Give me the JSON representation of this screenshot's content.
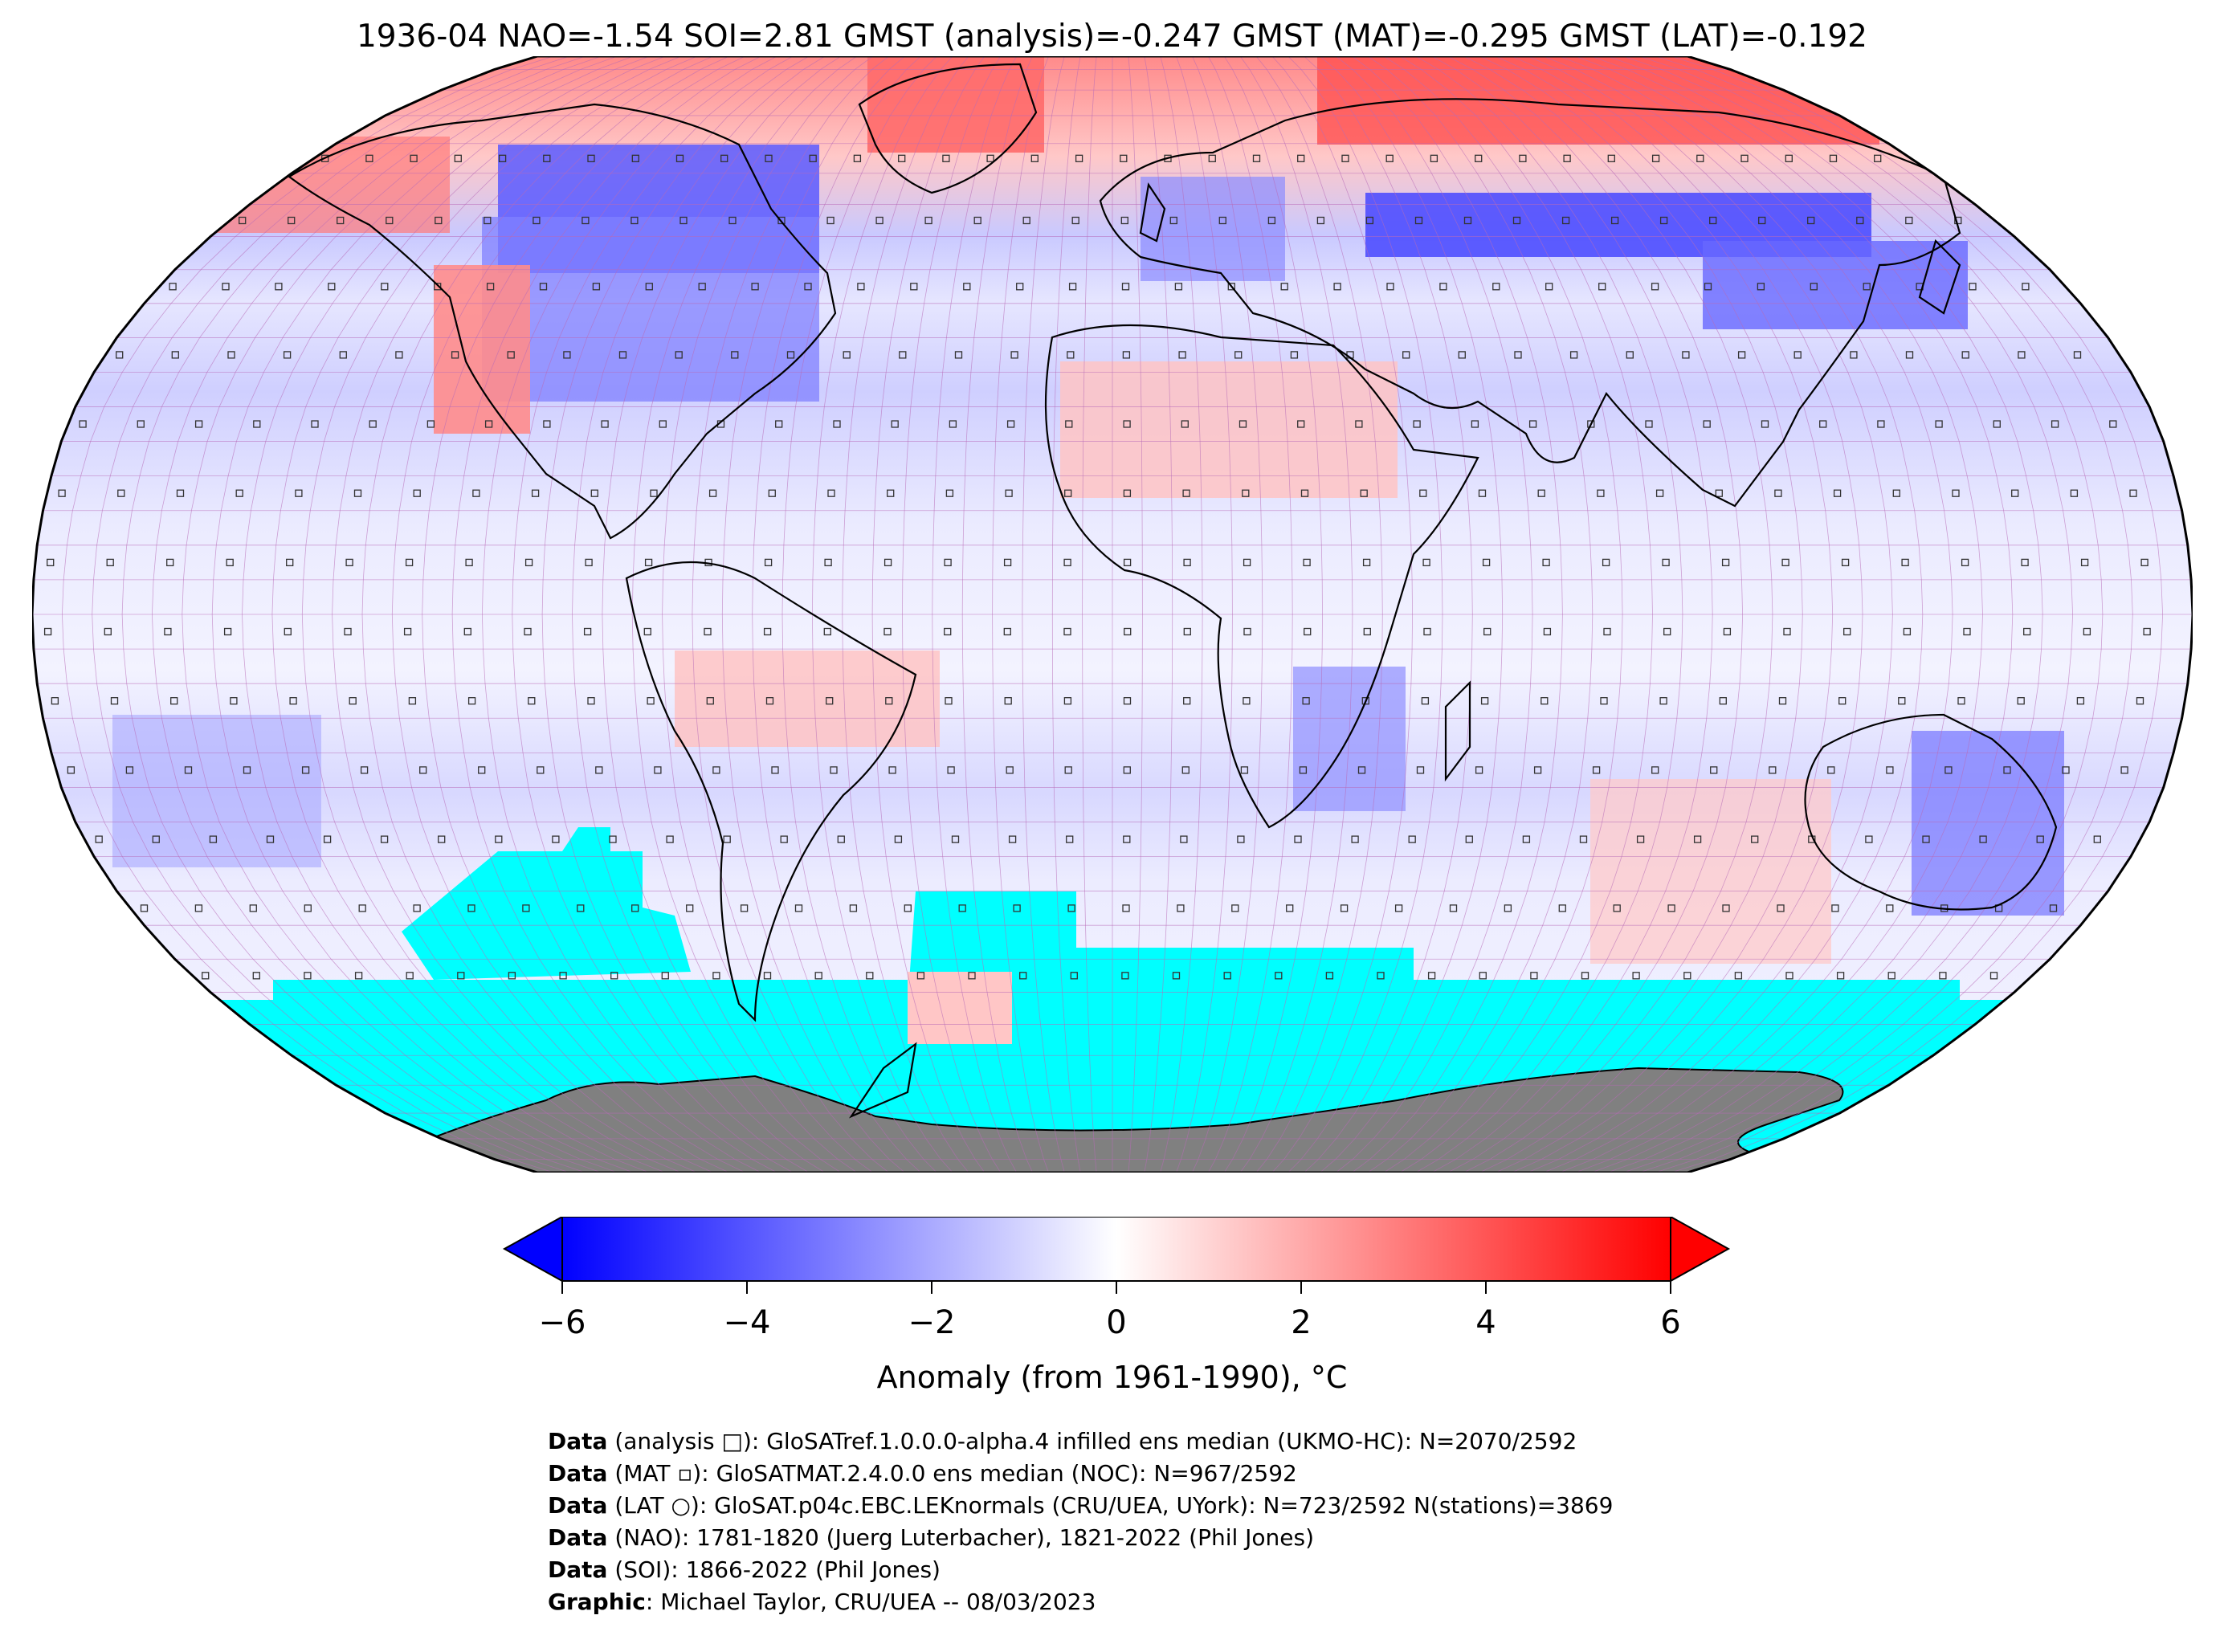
{
  "title": "1936-04 NAO=-1.54 SOI=2.81 GMST (analysis)=-0.247 GMST (MAT)=-0.295 GMST (LAT)=-0.192",
  "map": {
    "projection": "Robinson",
    "colors": {
      "no_data_ocean": "#00ffff",
      "land_mask": "#808080",
      "gridline": "#b86ab8",
      "coastline": "#000000",
      "strong_cold": "#2a2aff",
      "strong_warm": "#ff2a2a"
    }
  },
  "colorbar": {
    "ticks": [
      "−6",
      "−4",
      "−2",
      "0",
      "2",
      "4",
      "6"
    ],
    "min": -6,
    "max": 6,
    "cmap": "bwr",
    "label": "Anomaly (from 1961-1990), °C"
  },
  "credits": [
    {
      "bold": "Data",
      "text": " (analysis □): GloSATref.1.0.0.0-alpha.4 infilled ens median (UKMO-HC): N=2070/2592"
    },
    {
      "bold": "Data",
      "text": " (MAT ▫): GloSATMAT.2.4.0.0 ens median (NOC): N=967/2592"
    },
    {
      "bold": "Data",
      "text": " (LAT ○): GloSAT.p04c.EBC.LEKnormals (CRU/UEA, UYork): N=723/2592 N(stations)=3869"
    },
    {
      "bold": "Data",
      "text": " (NAO): 1781-1820 (Juerg Luterbacher), 1821-2022 (Phil Jones)"
    },
    {
      "bold": "Data",
      "text": " (SOI): 1866-2022 (Phil Jones)"
    },
    {
      "bold": "Graphic",
      "text": ": Michael Taylor, CRU/UEA -- 08/03/2023"
    }
  ]
}
